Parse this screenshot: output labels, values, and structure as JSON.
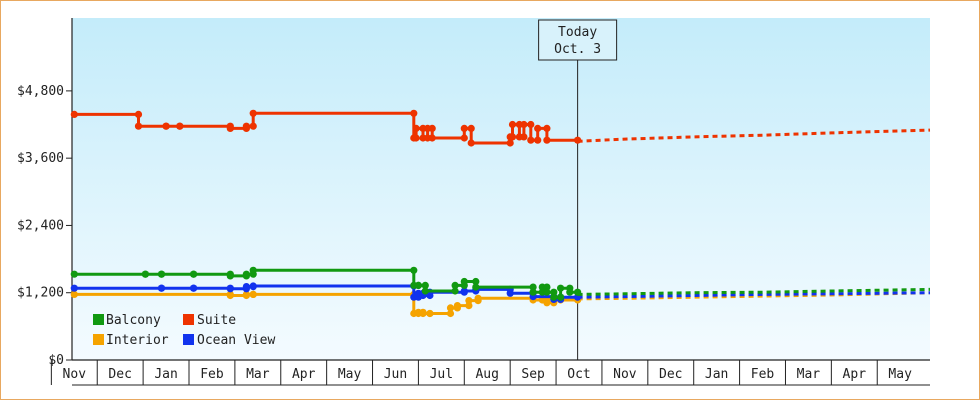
{
  "chart_data": {
    "type": "line",
    "title": "",
    "xlabel": "",
    "ylabel": "",
    "x_categories": [
      "Nov",
      "Dec",
      "Jan",
      "Feb",
      "Mar",
      "Apr",
      "May",
      "Jun",
      "Jul",
      "Aug",
      "Sep",
      "Oct",
      "Nov",
      "Dec",
      "Jan",
      "Feb",
      "Mar",
      "Apr",
      "May"
    ],
    "x_min": -0.05,
    "x_max": 18.65,
    "ylim": [
      0,
      6100
    ],
    "y_ticks": [
      0,
      1200,
      2400,
      3600,
      4800
    ],
    "y_tick_labels": [
      "$0",
      "$1,200",
      "$2,400",
      "$3,600",
      "$4,800"
    ],
    "grid": false,
    "legend_position": "bottom-left",
    "annotation": {
      "line1": "Today",
      "line2": "Oct. 3",
      "x": 10.97
    },
    "series": [
      {
        "name": "Balcony",
        "color": "#119911",
        "points": [
          [
            0.0,
            1530
          ],
          [
            1.55,
            1530
          ],
          [
            1.55,
            1530
          ],
          [
            1.9,
            1530
          ],
          [
            1.9,
            1530
          ],
          [
            2.6,
            1530
          ],
          [
            2.6,
            1530
          ],
          [
            3.4,
            1530
          ],
          [
            3.4,
            1500
          ],
          [
            3.75,
            1500
          ],
          [
            3.75,
            1530
          ],
          [
            3.9,
            1530
          ],
          [
            3.9,
            1600
          ],
          [
            7.4,
            1600
          ],
          [
            7.4,
            1330
          ],
          [
            7.5,
            1330
          ],
          [
            7.5,
            1330
          ],
          [
            7.65,
            1330
          ],
          [
            7.65,
            1230
          ],
          [
            8.3,
            1230
          ],
          [
            8.3,
            1330
          ],
          [
            8.5,
            1330
          ],
          [
            8.5,
            1400
          ],
          [
            8.75,
            1400
          ],
          [
            8.75,
            1300
          ],
          [
            10.0,
            1300
          ],
          [
            10.0,
            1210
          ],
          [
            10.2,
            1210
          ],
          [
            10.2,
            1300
          ],
          [
            10.3,
            1300
          ],
          [
            10.3,
            1210
          ],
          [
            10.45,
            1210
          ],
          [
            10.45,
            1120
          ],
          [
            10.6,
            1120
          ],
          [
            10.6,
            1280
          ],
          [
            10.8,
            1280
          ],
          [
            10.8,
            1210
          ],
          [
            10.97,
            1210
          ]
        ],
        "forecast": [
          [
            10.97,
            1170
          ],
          [
            12.0,
            1180
          ],
          [
            13.5,
            1200
          ],
          [
            15.0,
            1210
          ],
          [
            16.5,
            1230
          ],
          [
            18.65,
            1260
          ]
        ]
      },
      {
        "name": "Suite",
        "color": "#ee3300",
        "points": [
          [
            0.0,
            4380
          ],
          [
            1.4,
            4380
          ],
          [
            1.4,
            4170
          ],
          [
            2.0,
            4170
          ],
          [
            2.0,
            4170
          ],
          [
            2.3,
            4170
          ],
          [
            2.3,
            4170
          ],
          [
            3.4,
            4170
          ],
          [
            3.4,
            4130
          ],
          [
            3.75,
            4130
          ],
          [
            3.75,
            4170
          ],
          [
            3.9,
            4170
          ],
          [
            3.9,
            4400
          ],
          [
            7.4,
            4400
          ],
          [
            7.4,
            3960
          ],
          [
            7.45,
            3960
          ],
          [
            7.45,
            4130
          ],
          [
            7.6,
            4130
          ],
          [
            7.6,
            3960
          ],
          [
            7.7,
            3960
          ],
          [
            7.7,
            4130
          ],
          [
            7.8,
            4130
          ],
          [
            7.8,
            3960
          ],
          [
            8.5,
            3960
          ],
          [
            8.5,
            4130
          ],
          [
            8.65,
            4130
          ],
          [
            8.65,
            3870
          ],
          [
            9.5,
            3870
          ],
          [
            9.5,
            3980
          ],
          [
            9.55,
            3980
          ],
          [
            9.55,
            4200
          ],
          [
            9.7,
            4200
          ],
          [
            9.7,
            3980
          ],
          [
            9.8,
            3980
          ],
          [
            9.8,
            4200
          ],
          [
            9.95,
            4200
          ],
          [
            9.95,
            3920
          ],
          [
            10.1,
            3920
          ],
          [
            10.1,
            4130
          ],
          [
            10.3,
            4130
          ],
          [
            10.3,
            3920
          ],
          [
            10.97,
            3920
          ]
        ],
        "forecast": [
          [
            10.97,
            3900
          ],
          [
            12.0,
            3940
          ],
          [
            13.5,
            3980
          ],
          [
            15.0,
            4010
          ],
          [
            16.5,
            4050
          ],
          [
            18.65,
            4100
          ]
        ]
      },
      {
        "name": "Interior",
        "color": "#f5a300",
        "points": [
          [
            0.0,
            1170
          ],
          [
            3.4,
            1170
          ],
          [
            3.4,
            1150
          ],
          [
            3.75,
            1150
          ],
          [
            3.75,
            1170
          ],
          [
            3.9,
            1170
          ],
          [
            3.9,
            1170
          ],
          [
            7.4,
            1170
          ],
          [
            7.4,
            830
          ],
          [
            7.5,
            830
          ],
          [
            7.5,
            850
          ],
          [
            7.6,
            850
          ],
          [
            7.6,
            830
          ],
          [
            7.75,
            830
          ],
          [
            7.75,
            830
          ],
          [
            8.2,
            830
          ],
          [
            8.2,
            930
          ],
          [
            8.35,
            930
          ],
          [
            8.35,
            970
          ],
          [
            8.6,
            970
          ],
          [
            8.6,
            1060
          ],
          [
            8.8,
            1060
          ],
          [
            8.8,
            1100
          ],
          [
            10.0,
            1100
          ],
          [
            10.0,
            1070
          ],
          [
            10.2,
            1070
          ],
          [
            10.2,
            1090
          ],
          [
            10.3,
            1090
          ],
          [
            10.3,
            1020
          ],
          [
            10.45,
            1020
          ],
          [
            10.45,
            1080
          ],
          [
            10.6,
            1080
          ],
          [
            10.6,
            1070
          ],
          [
            10.97,
            1070
          ]
        ],
        "forecast": [
          [
            10.97,
            1090
          ],
          [
            12.0,
            1100
          ],
          [
            13.5,
            1120
          ],
          [
            15.0,
            1140
          ],
          [
            16.5,
            1160
          ],
          [
            18.65,
            1200
          ]
        ]
      },
      {
        "name": "Ocean View",
        "color": "#1133ee",
        "points": [
          [
            0.0,
            1280
          ],
          [
            1.9,
            1280
          ],
          [
            1.9,
            1280
          ],
          [
            2.6,
            1280
          ],
          [
            2.6,
            1280
          ],
          [
            3.4,
            1280
          ],
          [
            3.4,
            1270
          ],
          [
            3.75,
            1270
          ],
          [
            3.75,
            1310
          ],
          [
            3.9,
            1310
          ],
          [
            3.9,
            1320
          ],
          [
            7.4,
            1320
          ],
          [
            7.4,
            1120
          ],
          [
            7.5,
            1120
          ],
          [
            7.5,
            1190
          ],
          [
            7.6,
            1190
          ],
          [
            7.6,
            1150
          ],
          [
            7.75,
            1150
          ],
          [
            7.75,
            1210
          ],
          [
            8.5,
            1210
          ],
          [
            8.5,
            1230
          ],
          [
            8.75,
            1230
          ],
          [
            8.75,
            1260
          ],
          [
            9.5,
            1260
          ],
          [
            9.5,
            1190
          ],
          [
            10.0,
            1190
          ],
          [
            10.0,
            1130
          ],
          [
            10.45,
            1130
          ],
          [
            10.45,
            1080
          ],
          [
            10.6,
            1080
          ],
          [
            10.6,
            1120
          ],
          [
            10.97,
            1120
          ]
        ],
        "forecast": [
          [
            10.97,
            1120
          ],
          [
            12.0,
            1130
          ],
          [
            13.5,
            1150
          ],
          [
            15.0,
            1170
          ],
          [
            16.5,
            1180
          ],
          [
            18.65,
            1200
          ]
        ]
      }
    ]
  },
  "legend": [
    {
      "label": "Balcony",
      "color": "#119911"
    },
    {
      "label": "Suite",
      "color": "#ee3300"
    },
    {
      "label": "Interior",
      "color": "#f5a300"
    },
    {
      "label": "Ocean View",
      "color": "#1133ee"
    }
  ],
  "today_box": {
    "line1": "Today",
    "line2": "Oct. 3"
  },
  "colors": {
    "plot_bg_top": "#c4ecfa",
    "plot_bg_bottom": "#f4fbff",
    "border": "#e8a860",
    "axis": "#222222"
  }
}
